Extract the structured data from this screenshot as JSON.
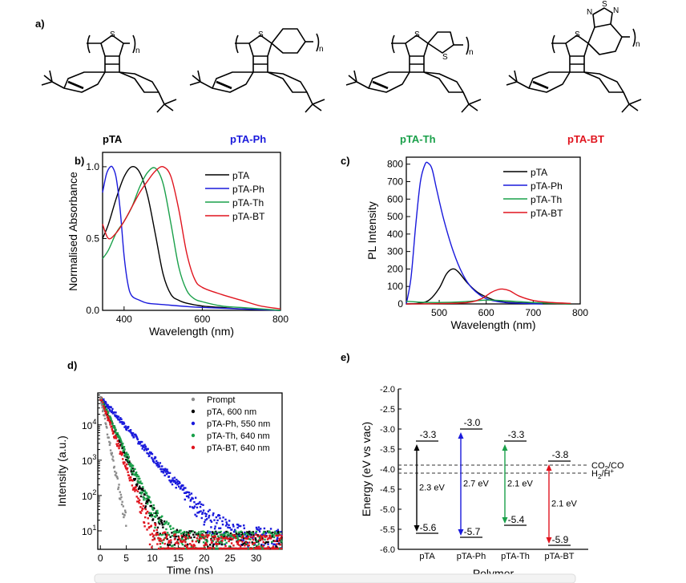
{
  "panels": {
    "a": {
      "label": "a)",
      "polymers": [
        {
          "name": "pTA",
          "color": "#000000",
          "atoms": [
            "S"
          ]
        },
        {
          "name": "pTA-Ph",
          "color": "#1a1adc",
          "atoms": [
            "S"
          ]
        },
        {
          "name": "pTA-Th",
          "color": "#1aa04a",
          "atoms": [
            "S",
            "S"
          ]
        },
        {
          "name": "pTA-BT",
          "color": "#e0141e",
          "atoms": [
            "S",
            "N",
            "S",
            "N"
          ]
        }
      ],
      "repeat_label": "n"
    },
    "b": {
      "label": "b)"
    },
    "c": {
      "label": "c)"
    },
    "d": {
      "label": "d)"
    },
    "e": {
      "label": "e)"
    }
  },
  "chart_data": [
    {
      "id": "b",
      "type": "line",
      "xlabel": "Wavelength (nm)",
      "ylabel": "Normalised Absorbance",
      "xlim": [
        345,
        800
      ],
      "ylim": [
        0,
        1.1
      ],
      "xticks": [
        400,
        600,
        800
      ],
      "yticks": [
        0.0,
        0.5,
        1.0
      ],
      "xtick_labels": [
        "400",
        "600",
        "800"
      ],
      "ytick_labels": [
        "0.0",
        "0.5",
        "1.0"
      ],
      "legend_position": "top-right",
      "series": [
        {
          "name": "pTA",
          "color": "#000000",
          "x": [
            345,
            360,
            380,
            400,
            420,
            440,
            460,
            480,
            500,
            520,
            540,
            560,
            600,
            650,
            700,
            800
          ],
          "y": [
            0.5,
            0.6,
            0.78,
            0.93,
            1.0,
            0.96,
            0.8,
            0.53,
            0.25,
            0.11,
            0.07,
            0.05,
            0.03,
            0.02,
            0.01,
            0.0
          ]
        },
        {
          "name": "pTA-Ph",
          "color": "#1a1adc",
          "x": [
            345,
            355,
            365,
            372,
            380,
            390,
            400,
            410,
            420,
            440,
            460,
            500,
            600,
            800
          ],
          "y": [
            0.82,
            0.95,
            1.0,
            0.99,
            0.92,
            0.7,
            0.38,
            0.18,
            0.1,
            0.07,
            0.05,
            0.04,
            0.02,
            0.0
          ]
        },
        {
          "name": "pTA-Th",
          "color": "#1aa04a",
          "x": [
            345,
            360,
            380,
            400,
            420,
            440,
            460,
            480,
            500,
            520,
            540,
            560,
            580,
            600,
            650,
            700,
            800
          ],
          "y": [
            0.36,
            0.42,
            0.54,
            0.62,
            0.72,
            0.86,
            0.96,
            0.99,
            0.88,
            0.6,
            0.3,
            0.14,
            0.08,
            0.06,
            0.03,
            0.02,
            0.0
          ]
        },
        {
          "name": "pTA-BT",
          "color": "#e0141e",
          "x": [
            345,
            360,
            380,
            400,
            420,
            440,
            460,
            480,
            500,
            520,
            540,
            560,
            580,
            600,
            650,
            700,
            750,
            800
          ],
          "y": [
            0.6,
            0.5,
            0.54,
            0.62,
            0.72,
            0.82,
            0.9,
            0.97,
            1.0,
            0.93,
            0.7,
            0.4,
            0.22,
            0.16,
            0.11,
            0.07,
            0.03,
            0.01
          ]
        }
      ]
    },
    {
      "id": "c",
      "type": "line",
      "xlabel": "Wavelength (nm)",
      "ylabel": "PL Intensity",
      "xlim": [
        430,
        800
      ],
      "ylim": [
        0,
        840
      ],
      "xticks": [
        500,
        600,
        700,
        800
      ],
      "yticks": [
        0,
        100,
        200,
        300,
        400,
        500,
        600,
        700,
        800
      ],
      "xtick_labels": [
        "500",
        "600",
        "700",
        "800"
      ],
      "ytick_labels": [
        "0",
        "100",
        "200",
        "300",
        "400",
        "500",
        "600",
        "700",
        "800"
      ],
      "legend_position": "top-right",
      "series": [
        {
          "name": "pTA",
          "color": "#000000",
          "x": [
            430,
            460,
            480,
            500,
            515,
            528,
            540,
            560,
            580,
            600,
            620,
            650,
            700,
            780
          ],
          "y": [
            0,
            5,
            25,
            90,
            170,
            200,
            185,
            120,
            70,
            40,
            20,
            8,
            3,
            0
          ]
        },
        {
          "name": "pTA-Ph",
          "color": "#1a1adc",
          "x": [
            430,
            440,
            450,
            460,
            470,
            477,
            485,
            495,
            510,
            530,
            550,
            570,
            600,
            640,
            680,
            720
          ],
          "y": [
            0,
            150,
            450,
            700,
            800,
            805,
            770,
            650,
            480,
            300,
            170,
            90,
            30,
            8,
            3,
            0
          ]
        },
        {
          "name": "pTA-Th",
          "color": "#1aa04a",
          "x": [
            430,
            460,
            500,
            550,
            600,
            640,
            700,
            780
          ],
          "y": [
            15,
            10,
            8,
            12,
            22,
            18,
            8,
            0
          ]
        },
        {
          "name": "pTA-BT",
          "color": "#e0141e",
          "x": [
            430,
            500,
            560,
            590,
            610,
            625,
            635,
            650,
            670,
            700,
            740,
            780
          ],
          "y": [
            0,
            2,
            8,
            30,
            65,
            82,
            85,
            75,
            45,
            20,
            8,
            3
          ]
        }
      ]
    },
    {
      "id": "d",
      "type": "scatter",
      "xlabel": "Time (ns)",
      "ylabel": "Intensity (a.u.)",
      "xlim": [
        -0.5,
        35
      ],
      "ylim": [
        3,
        80000
      ],
      "yscale": "log",
      "xticks": [
        0,
        5,
        10,
        15,
        20,
        25,
        30
      ],
      "xtick_labels": [
        "0",
        "5",
        "10",
        "15",
        "20",
        "25",
        "30"
      ],
      "yticks": [
        10,
        100,
        1000,
        10000
      ],
      "ytick_base": "10",
      "ytick_exponents": [
        "1",
        "2",
        "3",
        "4"
      ],
      "legend_position": "top-right",
      "series": [
        {
          "name": "Prompt",
          "color": "#8c8c8c",
          "amp": 60000,
          "tau": 0.6,
          "bg": 3,
          "xmax": 5
        },
        {
          "name": "pTA, 600 nm",
          "color": "#000000",
          "amp": 60000,
          "tau": 1.3,
          "bg": 5,
          "xmax": 35
        },
        {
          "name": "pTA-Ph, 550 nm",
          "color": "#1a1adc",
          "amp": 60000,
          "tau": 2.6,
          "bg": 6,
          "xmax": 35
        },
        {
          "name": "pTA-Th, 640 nm",
          "color": "#1aa04a",
          "amp": 60000,
          "tau": 1.35,
          "bg": 5,
          "xmax": 35
        },
        {
          "name": "pTA-BT, 640 nm",
          "color": "#e0141e",
          "amp": 60000,
          "tau": 1.1,
          "bg": 4,
          "xmax": 35
        }
      ]
    },
    {
      "id": "e",
      "type": "energy-diagram",
      "xlabel": "Polymer",
      "ylabel": "Energy (eV vs vac)",
      "ylim": [
        -6.0,
        -2.0
      ],
      "yticks": [
        -2.0,
        -2.5,
        -3.0,
        -3.5,
        -4.0,
        -4.5,
        -5.0,
        -5.5,
        -6.0
      ],
      "ytick_labels": [
        "-2.0",
        "-2.5",
        "-3.0",
        "-3.5",
        "-4.0",
        "-4.5",
        "-5.0",
        "-5.5",
        "-6.0"
      ],
      "categories": [
        "pTA",
        "pTA-Ph",
        "pTA-Th",
        "pTA-BT"
      ],
      "series": [
        {
          "name": "pTA",
          "color": "#000000",
          "lumo": -3.3,
          "homo": -5.6,
          "lumo_label": "-3.3",
          "homo_label": "-5.6",
          "gap_label": "2.3 eV"
        },
        {
          "name": "pTA-Ph",
          "color": "#1a1adc",
          "lumo": -3.0,
          "homo": -5.7,
          "lumo_label": "-3.0",
          "homo_label": "-5.7",
          "gap_label": "2.7 eV"
        },
        {
          "name": "pTA-Th",
          "color": "#1aa04a",
          "lumo": -3.3,
          "homo": -5.4,
          "lumo_label": "-3.3",
          "homo_label": "-5.4",
          "gap_label": "2.1 eV"
        },
        {
          "name": "pTA-BT",
          "color": "#e0141e",
          "lumo": -3.8,
          "homo": -5.9,
          "lumo_label": "-3.8",
          "homo_label": "-5.9",
          "gap_label": "2.1 eV"
        }
      ],
      "reference_lines": [
        {
          "value": -3.9,
          "label": "CO",
          "sub": "2",
          "suffix": "/CO"
        },
        {
          "value": -4.1,
          "label": "H",
          "sub": "2",
          "suffix": "/H",
          "sup": "+"
        }
      ]
    }
  ]
}
